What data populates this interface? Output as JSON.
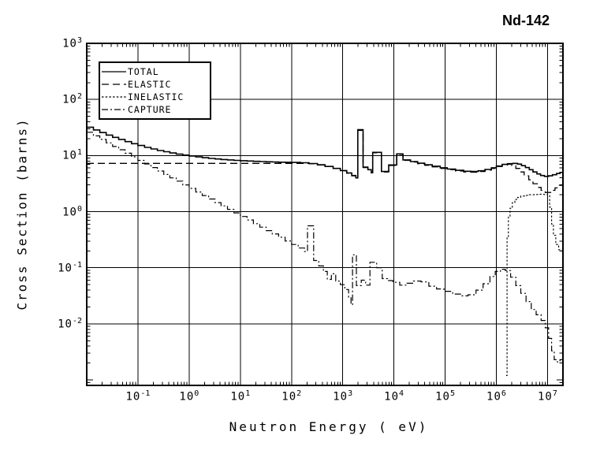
{
  "title": "Nd-142",
  "x_axis": {
    "label": "Neutron Energy ( eV)",
    "tick_exps": [
      -1,
      0,
      1,
      2,
      3,
      4,
      5,
      6,
      7
    ]
  },
  "y_axis": {
    "label": "Cross Section (barns)",
    "tick_exps": [
      3,
      2,
      1,
      0,
      -1,
      -2
    ]
  },
  "colors": {
    "foreground": "#000000",
    "background": "#ffffff",
    "grid": "#000000"
  },
  "chart_data": {
    "type": "line",
    "title": "Nd-142",
    "xlabel": "Neutron Energy ( eV)",
    "ylabel": "Cross Section (barns)",
    "xscale": "log",
    "yscale": "log",
    "xlim": [
      0.01,
      20000000
    ],
    "ylim": [
      0.0008,
      1000
    ],
    "grid": true,
    "legend_position": "top-left",
    "series": [
      {
        "name": "TOTAL",
        "line_style": "solid",
        "dash": "",
        "width": 1.6,
        "points": [
          [
            0.01,
            32
          ],
          [
            0.0135,
            28.6
          ],
          [
            0.018,
            25.7
          ],
          [
            0.024,
            23.2
          ],
          [
            0.032,
            21.1
          ],
          [
            0.042,
            19.4
          ],
          [
            0.056,
            17.7
          ],
          [
            0.075,
            16.3
          ],
          [
            0.1,
            15.1
          ],
          [
            0.135,
            14.0
          ],
          [
            0.18,
            13.1
          ],
          [
            0.24,
            12.3
          ],
          [
            0.32,
            11.7
          ],
          [
            0.42,
            11.1
          ],
          [
            0.56,
            10.6
          ],
          [
            0.75,
            10.2
          ],
          [
            1,
            9.8
          ],
          [
            1.35,
            9.45
          ],
          [
            1.8,
            9.15
          ],
          [
            2.4,
            8.9
          ],
          [
            3.2,
            8.7
          ],
          [
            4.2,
            8.5
          ],
          [
            5.6,
            8.35
          ],
          [
            7.5,
            8.2
          ],
          [
            10,
            8.1
          ],
          [
            13.5,
            8.0
          ],
          [
            18,
            7.9
          ],
          [
            24,
            7.82
          ],
          [
            32,
            7.74
          ],
          [
            42,
            7.68
          ],
          [
            56,
            7.62
          ],
          [
            75,
            7.58
          ],
          [
            100,
            7.55
          ],
          [
            150,
            7.45
          ],
          [
            220,
            7.2
          ],
          [
            320,
            6.85
          ],
          [
            450,
            6.4
          ],
          [
            650,
            5.9
          ],
          [
            900,
            5.4
          ],
          [
            1200,
            4.9
          ],
          [
            1500,
            4.4
          ],
          [
            1800,
            4.0
          ],
          [
            1970,
            29
          ],
          [
            2500,
            6.2
          ],
          [
            3100,
            5.6
          ],
          [
            3600,
            5.0
          ],
          [
            3850,
            11.4
          ],
          [
            5700,
            5.2
          ],
          [
            7900,
            6.8
          ],
          [
            11300,
            10.7
          ],
          [
            15000,
            8.35
          ],
          [
            21000,
            7.8
          ],
          [
            29000,
            7.3
          ],
          [
            40000,
            6.85
          ],
          [
            56000,
            6.45
          ],
          [
            80000,
            6.05
          ],
          [
            110000,
            5.75
          ],
          [
            160000,
            5.45
          ],
          [
            230000,
            5.25
          ],
          [
            320000,
            5.2
          ],
          [
            440000,
            5.35
          ],
          [
            600000,
            5.65
          ],
          [
            800000,
            6.05
          ],
          [
            1000000,
            6.5
          ],
          [
            1300000,
            6.95
          ],
          [
            1650000,
            7.15
          ],
          [
            2100000,
            7.25
          ],
          [
            2600000,
            7.05
          ],
          [
            3100000,
            6.6
          ],
          [
            3700000,
            6.1
          ],
          [
            4400000,
            5.6
          ],
          [
            5200000,
            5.1
          ],
          [
            6200000,
            4.7
          ],
          [
            7300000,
            4.4
          ],
          [
            8700000,
            4.25
          ],
          [
            10500000,
            4.35
          ],
          [
            12500000,
            4.55
          ],
          [
            15000000,
            4.8
          ],
          [
            17500000,
            5.0
          ],
          [
            20000000,
            5.2
          ]
        ]
      },
      {
        "name": "ELASTIC",
        "line_style": "long-dash",
        "dash": "9,5",
        "width": 1.3,
        "points": [
          [
            0.01,
            7.25
          ],
          [
            150,
            7.25
          ],
          [
            220,
            7.15
          ],
          [
            320,
            6.8
          ],
          [
            450,
            6.35
          ],
          [
            650,
            5.85
          ],
          [
            900,
            5.35
          ],
          [
            1200,
            4.85
          ],
          [
            1500,
            4.35
          ],
          [
            1800,
            3.95
          ],
          [
            1970,
            28
          ],
          [
            2500,
            6.1
          ],
          [
            3100,
            5.5
          ],
          [
            3600,
            4.9
          ],
          [
            3850,
            11.2
          ],
          [
            5700,
            5.1
          ],
          [
            7900,
            6.65
          ],
          [
            11300,
            10.5
          ],
          [
            15000,
            8.2
          ],
          [
            21000,
            7.65
          ],
          [
            29000,
            7.15
          ],
          [
            40000,
            6.7
          ],
          [
            56000,
            6.3
          ],
          [
            80000,
            5.9
          ],
          [
            110000,
            5.6
          ],
          [
            160000,
            5.3
          ],
          [
            230000,
            5.1
          ],
          [
            320000,
            5.05
          ],
          [
            440000,
            5.2
          ],
          [
            600000,
            5.5
          ],
          [
            800000,
            5.9
          ],
          [
            1000000,
            6.35
          ],
          [
            1300000,
            6.8
          ],
          [
            1650000,
            7.0
          ],
          [
            2000000,
            6.6
          ],
          [
            2400000,
            5.9
          ],
          [
            2900000,
            5.1
          ],
          [
            3500000,
            4.35
          ],
          [
            4300000,
            3.7
          ],
          [
            5200000,
            3.15
          ],
          [
            6300000,
            2.7
          ],
          [
            7500000,
            2.4
          ],
          [
            9000000,
            2.2
          ],
          [
            10500000,
            2.2
          ],
          [
            12000000,
            2.4
          ],
          [
            14000000,
            2.65
          ],
          [
            17000000,
            2.95
          ],
          [
            20000000,
            3.2
          ]
        ]
      },
      {
        "name": "INELASTIC",
        "line_style": "fine-dash",
        "dash": "2.5,2.2",
        "width": 1.1,
        "points": [
          [
            1550000,
            0.0012
          ],
          [
            1620000,
            0.35
          ],
          [
            1720000,
            0.8
          ],
          [
            1850000,
            1.15
          ],
          [
            2050000,
            1.45
          ],
          [
            2300000,
            1.65
          ],
          [
            2600000,
            1.8
          ],
          [
            3000000,
            1.9
          ],
          [
            3600000,
            1.95
          ],
          [
            4400000,
            2.0
          ],
          [
            5500000,
            2.02
          ],
          [
            7000000,
            2.05
          ],
          [
            8500000,
            2.02
          ],
          [
            10000000,
            1.95
          ],
          [
            11000000,
            1.2
          ],
          [
            12000000,
            0.6
          ],
          [
            13000000,
            0.38
          ],
          [
            14500000,
            0.26
          ],
          [
            16500000,
            0.21
          ],
          [
            18500000,
            0.2
          ],
          [
            20000000,
            0.21
          ]
        ]
      },
      {
        "name": "CAPTURE",
        "line_style": "dash-dot",
        "dash": "8,3,2,3",
        "width": 1.2,
        "points": [
          [
            0.01,
            26
          ],
          [
            0.0135,
            22.4
          ],
          [
            0.018,
            19.4
          ],
          [
            0.024,
            16.8
          ],
          [
            0.032,
            14.5
          ],
          [
            0.042,
            12.7
          ],
          [
            0.056,
            11.0
          ],
          [
            0.075,
            9.5
          ],
          [
            0.1,
            8.2
          ],
          [
            0.135,
            7.1
          ],
          [
            0.18,
            6.1
          ],
          [
            0.24,
            5.3
          ],
          [
            0.32,
            4.6
          ],
          [
            0.42,
            4.0
          ],
          [
            0.56,
            3.5
          ],
          [
            0.75,
            3.0
          ],
          [
            1,
            2.6
          ],
          [
            1.35,
            2.24
          ],
          [
            1.8,
            1.94
          ],
          [
            2.4,
            1.68
          ],
          [
            3.2,
            1.45
          ],
          [
            4.2,
            1.27
          ],
          [
            5.6,
            1.1
          ],
          [
            7.5,
            0.95
          ],
          [
            10,
            0.82
          ],
          [
            13.5,
            0.71
          ],
          [
            18,
            0.61
          ],
          [
            24,
            0.53
          ],
          [
            32,
            0.46
          ],
          [
            42,
            0.4
          ],
          [
            56,
            0.35
          ],
          [
            75,
            0.3
          ],
          [
            100,
            0.26
          ],
          [
            135,
            0.225
          ],
          [
            180,
            0.195
          ],
          [
            205,
            0.56
          ],
          [
            270,
            0.135
          ],
          [
            340,
            0.108
          ],
          [
            420,
            0.086
          ],
          [
            500,
            0.062
          ],
          [
            600,
            0.078
          ],
          [
            730,
            0.058
          ],
          [
            900,
            0.05
          ],
          [
            1100,
            0.041
          ],
          [
            1300,
            0.03
          ],
          [
            1450,
            0.022
          ],
          [
            1550,
            0.17
          ],
          [
            1850,
            0.048
          ],
          [
            2300,
            0.06
          ],
          [
            2800,
            0.049
          ],
          [
            3400,
            0.125
          ],
          [
            4600,
            0.1
          ],
          [
            5900,
            0.064
          ],
          [
            7500,
            0.059
          ],
          [
            9500,
            0.055
          ],
          [
            13000,
            0.049
          ],
          [
            18000,
            0.053
          ],
          [
            24000,
            0.058
          ],
          [
            34000,
            0.056
          ],
          [
            48000,
            0.047
          ],
          [
            68000,
            0.042
          ],
          [
            95000,
            0.038
          ],
          [
            140000,
            0.034
          ],
          [
            200000,
            0.0315
          ],
          [
            280000,
            0.033
          ],
          [
            400000,
            0.04
          ],
          [
            550000,
            0.052
          ],
          [
            750000,
            0.07
          ],
          [
            950000,
            0.086
          ],
          [
            1200000,
            0.094
          ],
          [
            1500000,
            0.089
          ],
          [
            1900000,
            0.068
          ],
          [
            2400000,
            0.048
          ],
          [
            3000000,
            0.035
          ],
          [
            3800000,
            0.025
          ],
          [
            4800000,
            0.018
          ],
          [
            6000000,
            0.0145
          ],
          [
            7500000,
            0.0115
          ],
          [
            9000000,
            0.0085
          ],
          [
            10500000,
            0.0055
          ],
          [
            12000000,
            0.0033
          ],
          [
            13500000,
            0.0023
          ],
          [
            15500000,
            0.0021
          ],
          [
            17500000,
            0.0023
          ],
          [
            20000000,
            0.0028
          ]
        ]
      }
    ]
  }
}
